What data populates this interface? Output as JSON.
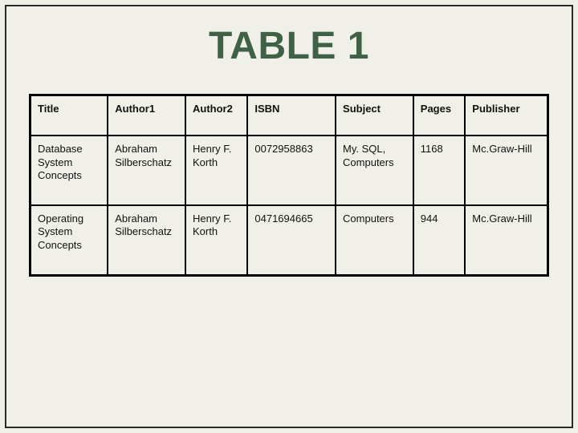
{
  "title": "TABLE 1",
  "table": {
    "type": "table",
    "background_color": "#f1f0e8",
    "border_color": "#000000",
    "border_width": 2,
    "outer_border_width": 3,
    "header_font_weight": 700,
    "cell_fontsize": 13,
    "title_color": "#3f6246",
    "title_fontsize": 48,
    "columns": [
      {
        "label": "Title",
        "width_pct": 15
      },
      {
        "label": "Author1",
        "width_pct": 15
      },
      {
        "label": "Author2",
        "width_pct": 12
      },
      {
        "label": "ISBN",
        "width_pct": 17
      },
      {
        "label": "Subject",
        "width_pct": 15
      },
      {
        "label": "Pages",
        "width_pct": 10
      },
      {
        "label": "Publisher",
        "width_pct": 16
      }
    ],
    "rows": [
      [
        "Database System Concepts",
        "Abraham Silberschatz",
        "Henry F. Korth",
        "0072958863",
        "My. SQL, Computers",
        "1168",
        "Mc.Graw-Hill"
      ],
      [
        "Operating System Concepts",
        "Abraham Silberschatz",
        "Henry F. Korth",
        "0471694665",
        "Computers",
        "944",
        "Mc.Graw-Hill"
      ]
    ]
  }
}
